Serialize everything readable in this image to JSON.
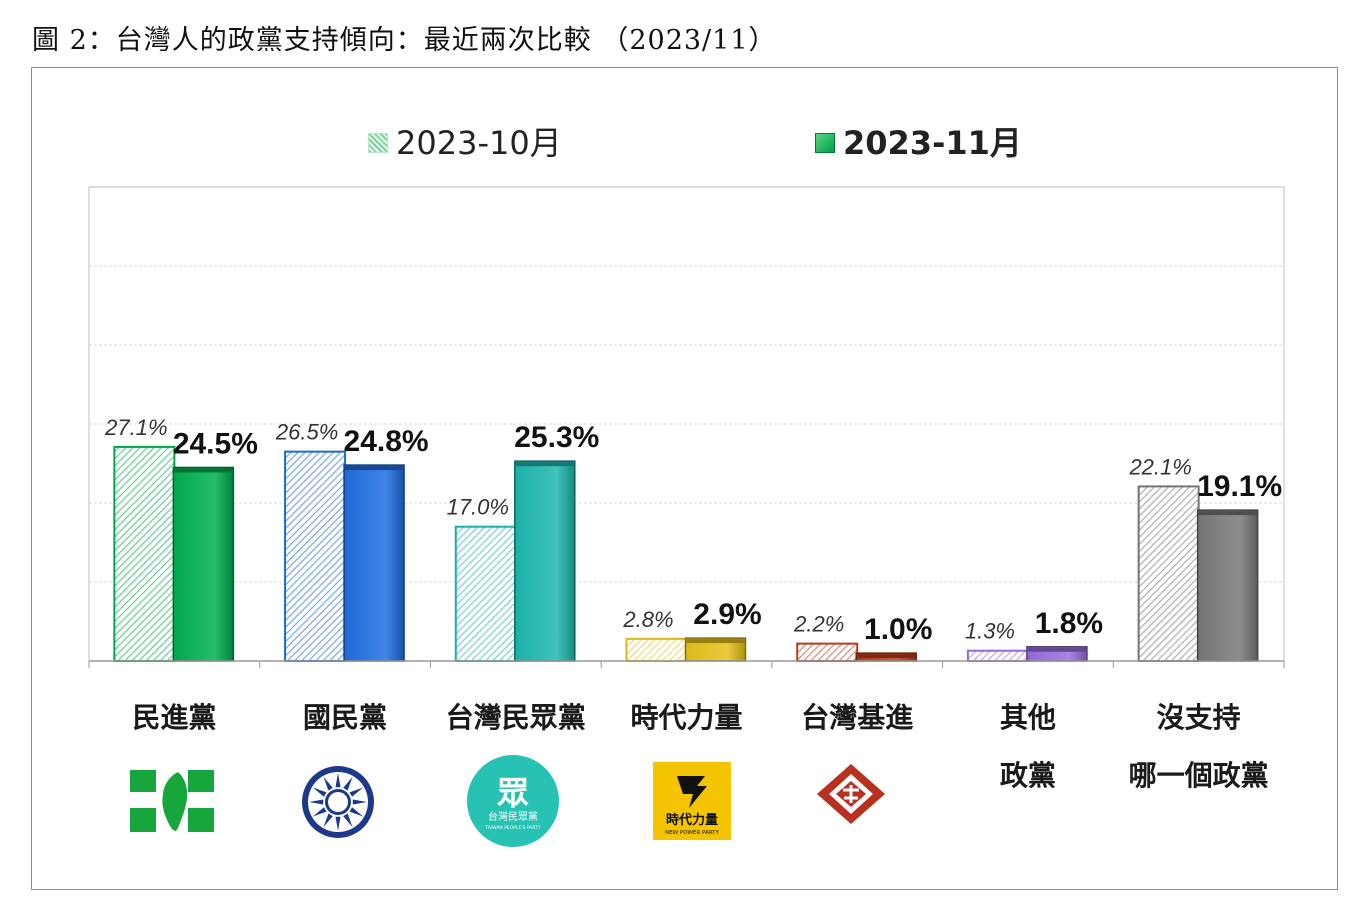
{
  "page_title": "圖 2：台灣人的政黨支持傾向：最近兩次比較 （2023/11）",
  "legend": [
    {
      "label": "2023-10月",
      "style": "hatched"
    },
    {
      "label": "2023-11月",
      "style": "solid"
    }
  ],
  "colors": {
    "dpp": "#00b050",
    "kmt": "#1f6fe0",
    "tpp": "#1db8b0",
    "npp": "#e8c21a",
    "tsp": "#c0401a",
    "other": "#9b6ee0",
    "none": "#7a7a7a"
  },
  "chart_data": {
    "type": "bar",
    "categories": [
      "民進黨",
      "國民黨",
      "台灣民眾黨",
      "時代力量",
      "台灣基進",
      "其他\n政黨",
      "沒支持\n哪一個政黨"
    ],
    "series": [
      {
        "name": "2023-10月",
        "values": [
          27.1,
          26.5,
          17.0,
          2.8,
          2.2,
          1.3,
          22.1
        ]
      },
      {
        "name": "2023-11月",
        "values": [
          24.5,
          24.8,
          25.3,
          2.9,
          1.0,
          1.8,
          19.1
        ]
      }
    ],
    "data_labels": [
      [
        "27.1%",
        "26.5%",
        "17.0%",
        "2.8%",
        "2.2%",
        "1.3%",
        "22.1%"
      ],
      [
        "24.5%",
        "24.8%",
        "25.3%",
        "2.9%",
        "1.0%",
        "1.8%",
        "19.1%"
      ]
    ],
    "ylim": [
      0,
      60
    ],
    "grid": true,
    "legend_position": "top"
  },
  "logos": {
    "tpp_text": "眾",
    "tpp_subtext": "台灣民眾黨",
    "tpp_tiny": "TAIWAN PEOPLE'S PARTY",
    "npp_text": "時代力量",
    "npp_tiny": "NEW POWER PARTY"
  }
}
